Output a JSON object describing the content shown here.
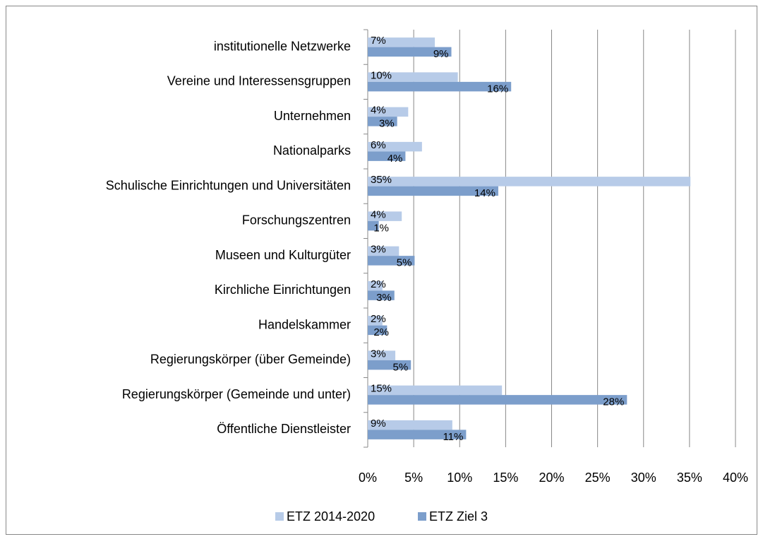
{
  "chart_data": {
    "type": "hbar",
    "categories": [
      "institutionelle Netzwerke",
      "Vereine und Interessensgruppen",
      "Unternehmen",
      "Nationalparks",
      "Schulische Einrichtungen und Universitäten",
      "Forschungszentren",
      "Museen und Kulturgüter",
      "Kirchliche Einrichtungen",
      "Handelskammer",
      "Regierungskörper (über Gemeinde)",
      "Regierungskörper (Gemeinde und unter)",
      "Öffentliche Dienstleister"
    ],
    "series": [
      {
        "name": "ETZ 2014-2020",
        "color": "#b7cbe8",
        "values": [
          7.3,
          9.8,
          4.4,
          5.9,
          35.1,
          3.7,
          3.4,
          1.6,
          1.6,
          3.0,
          14.6,
          9.2
        ],
        "value_labels": [
          "7%",
          "10%",
          "4%",
          "6%",
          "35%",
          "4%",
          "3%",
          "2%",
          "2%",
          "3%",
          "15%",
          "9%"
        ]
      },
      {
        "name": "ETZ Ziel 3",
        "color": "#7c9ecb",
        "values": [
          9.1,
          15.6,
          3.2,
          4.1,
          14.2,
          1.2,
          5.1,
          2.9,
          2.1,
          4.7,
          28.2,
          10.7
        ],
        "value_labels": [
          "9%",
          "16%",
          "3%",
          "4%",
          "14%",
          "1%",
          "5%",
          "3%",
          "2%",
          "5%",
          "28%",
          "11%"
        ]
      }
    ],
    "xlim": [
      0,
      40
    ],
    "xticks": [
      {
        "value": 0,
        "label": "0%"
      },
      {
        "value": 5,
        "label": "5%"
      },
      {
        "value": 10,
        "label": "10%"
      },
      {
        "value": 15,
        "label": "15%"
      },
      {
        "value": 20,
        "label": "20%"
      },
      {
        "value": 25,
        "label": "25%"
      },
      {
        "value": 30,
        "label": "30%"
      },
      {
        "value": 35,
        "label": "35%"
      },
      {
        "value": 40,
        "label": "40%"
      }
    ],
    "grid": true,
    "legend": "bottom"
  }
}
